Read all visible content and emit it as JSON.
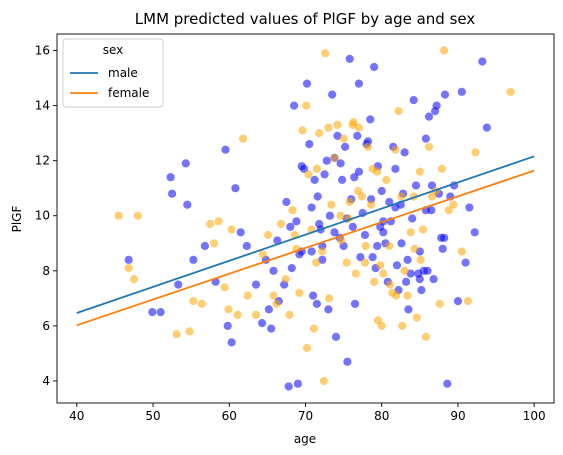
{
  "chart_data": {
    "type": "scatter",
    "title": "LMM predicted values of PlGF by age and sex",
    "xlabel": "age",
    "ylabel": "PlGF",
    "xlim": [
      37.4,
      102.6
    ],
    "ylim": [
      3.2,
      16.6
    ],
    "xticks": [
      40,
      50,
      60,
      70,
      80,
      90,
      100
    ],
    "yticks": [
      4,
      6,
      8,
      10,
      12,
      14,
      16
    ],
    "grid": false,
    "legend": {
      "title": "sex",
      "placement": "top-left",
      "entries": [
        {
          "label": "male",
          "color": "#1f77b4"
        },
        {
          "label": "female",
          "color": "#ff7f0e"
        }
      ]
    },
    "lines": [
      {
        "name": "male",
        "color": "#1f77b4",
        "x": [
          40,
          100
        ],
        "y": [
          6.47,
          12.16
        ]
      },
      {
        "name": "female",
        "color": "#ff7f0e",
        "x": [
          40,
          100
        ],
        "y": [
          6.02,
          11.64
        ]
      }
    ],
    "points": [
      {
        "name": "male",
        "color": "#0000ff",
        "alpha": 0.55,
        "x": [
          46.8,
          49.9,
          51.0,
          52.3,
          52.5,
          53.3,
          54.3,
          54.5,
          55.3,
          56.8,
          58.2,
          59.5,
          59.8,
          60.3,
          60.8,
          61.5,
          62.3,
          63.5,
          64.3,
          64.8,
          65.2,
          65.5,
          65.8,
          66.3,
          66.5,
          67.2,
          67.5,
          67.8,
          68.2,
          68.5,
          68.8,
          69.0,
          69.2,
          69.5,
          69.8,
          70.2,
          70.5,
          70.8,
          71.0,
          71.2,
          71.5,
          71.8,
          72.0,
          72.2,
          72.5,
          72.8,
          73.0,
          73.2,
          73.5,
          73.8,
          74.0,
          74.2,
          74.5,
          74.8,
          75.0,
          75.2,
          75.5,
          75.8,
          76.0,
          76.2,
          76.5,
          76.8,
          77.0,
          77.2,
          77.5,
          77.8,
          78.0,
          78.2,
          78.5,
          78.8,
          79.0,
          79.2,
          79.5,
          79.8,
          80.0,
          80.2,
          80.5,
          80.8,
          81.0,
          81.2,
          81.5,
          81.8,
          82.0,
          82.2,
          82.5,
          82.8,
          83.0,
          83.2,
          83.5,
          83.8,
          84.0,
          84.2,
          84.5,
          84.8,
          85.0,
          85.2,
          85.5,
          85.8,
          86.0,
          86.2,
          86.5,
          86.8,
          87.0,
          87.2,
          87.5,
          87.8,
          88.0,
          88.3,
          88.6,
          89.0,
          89.5,
          90.0,
          90.5,
          91.0,
          91.5,
          92.2,
          93.2,
          93.8,
          68.0,
          69.5,
          70.8,
          72.2,
          73.8,
          75.4,
          77.0,
          78.6,
          80.2,
          81.8,
          83.4,
          85.0,
          86.6,
          88.2,
          71.6,
          74.6,
          79.4,
          82.6,
          85.8,
          76.4
        ],
        "y": [
          8.4,
          6.5,
          6.5,
          11.4,
          10.8,
          7.5,
          11.9,
          10.4,
          8.4,
          8.9,
          7.6,
          12.4,
          6.0,
          5.4,
          11.0,
          9.4,
          8.9,
          7.5,
          6.1,
          8.4,
          6.6,
          5.9,
          8.0,
          9.1,
          6.9,
          7.5,
          10.5,
          3.8,
          8.1,
          14.0,
          9.8,
          3.9,
          8.6,
          11.8,
          11.7,
          14.8,
          12.6,
          8.7,
          7.1,
          11.3,
          6.8,
          9.7,
          9.5,
          8.4,
          11.5,
          12.0,
          6.6,
          10.0,
          14.4,
          9.4,
          5.6,
          12.9,
          9.2,
          11.3,
          8.9,
          12.5,
          4.7,
          15.7,
          10.6,
          9.6,
          6.8,
          12.9,
          14.8,
          8.5,
          10.1,
          9.3,
          12.6,
          12.7,
          13.5,
          8.5,
          15.4,
          8.1,
          11.8,
          9.6,
          10.9,
          9.4,
          9.0,
          7.6,
          10.5,
          9.8,
          12.5,
          11.7,
          8.2,
          7.3,
          10.4,
          10.8,
          12.3,
          7.6,
          6.6,
          7.9,
          9.9,
          14.2,
          11.1,
          7.9,
          8.7,
          7.3,
          8.0,
          12.8,
          8.0,
          13.6,
          10.2,
          7.7,
          13.8,
          14.0,
          10.8,
          9.2,
          8.8,
          14.4,
          3.9,
          10.7,
          11.1,
          6.9,
          14.5,
          8.3,
          10.3,
          9.4,
          15.6,
          13.2,
          9.6,
          8.7,
          10.3,
          8.9,
          12.1,
          9.9,
          11.6,
          10.6,
          9.8,
          10.3,
          8.4,
          7.7,
          11.1,
          9.2,
          10.7,
          11.9,
          8.9,
          9.0,
          10.2,
          11.4
        ]
      },
      {
        "name": "female",
        "color": "#ffa500",
        "alpha": 0.55,
        "x": [
          45.5,
          46.8,
          47.5,
          48.0,
          53.1,
          54.8,
          55.3,
          56.4,
          57.5,
          58.0,
          58.6,
          59.4,
          59.9,
          60.3,
          61.1,
          61.8,
          62.4,
          63.5,
          64.4,
          65.1,
          65.8,
          66.2,
          66.8,
          67.4,
          67.9,
          68.3,
          68.8,
          69.2,
          69.6,
          70.1,
          70.4,
          70.8,
          71.1,
          71.5,
          71.8,
          72.2,
          72.6,
          73.0,
          73.4,
          73.8,
          74.2,
          74.6,
          75.0,
          75.4,
          75.8,
          76.2,
          76.6,
          77.0,
          77.4,
          77.8,
          78.2,
          78.6,
          79.0,
          79.4,
          79.8,
          80.2,
          80.6,
          81.0,
          81.4,
          81.8,
          82.2,
          82.6,
          83.0,
          83.4,
          83.8,
          84.2,
          84.6,
          85.0,
          85.4,
          85.8,
          86.2,
          86.6,
          87.1,
          87.6,
          88.2,
          88.8,
          89.4,
          90.5,
          91.3,
          92.3,
          96.9,
          71.4,
          73.1,
          74.7,
          76.3,
          77.9,
          79.5,
          81.1,
          82.7,
          84.3,
          72.4,
          75.7,
          78.8,
          81.9,
          70.2,
          76.9,
          80.0,
          85.1,
          68.6,
          87.9
        ],
        "y": [
          10.0,
          8.1,
          7.7,
          10.0,
          5.7,
          5.8,
          6.9,
          6.8,
          9.7,
          9.0,
          9.8,
          7.4,
          6.6,
          9.5,
          6.4,
          12.8,
          7.1,
          6.4,
          8.6,
          9.3,
          7.1,
          6.8,
          9.7,
          7.7,
          6.4,
          10.2,
          8.8,
          7.2,
          13.1,
          14.0,
          11.5,
          9.5,
          5.9,
          11.7,
          13.0,
          8.7,
          15.9,
          13.2,
          10.4,
          12.1,
          13.3,
          10.0,
          12.8,
          8.3,
          10.5,
          13.3,
          7.9,
          13.2,
          10.7,
          8.3,
          12.5,
          10.4,
          7.6,
          11.6,
          8.2,
          7.9,
          11.3,
          8.9,
          7.2,
          12.4,
          13.8,
          10.7,
          8.0,
          7.1,
          9.4,
          10.7,
          6.3,
          11.6,
          9.5,
          5.6,
          12.5,
          10.7,
          10.9,
          6.8,
          16.0,
          10.2,
          10.4,
          8.7,
          6.9,
          12.3,
          14.5,
          8.3,
          7.0,
          9.1,
          13.4,
          8.9,
          6.2,
          7.5,
          6.0,
          8.8,
          4.0,
          9.9,
          11.7,
          7.1,
          5.2,
          10.9,
          6.0,
          8.4,
          9.3,
          11.7
        ]
      }
    ]
  }
}
